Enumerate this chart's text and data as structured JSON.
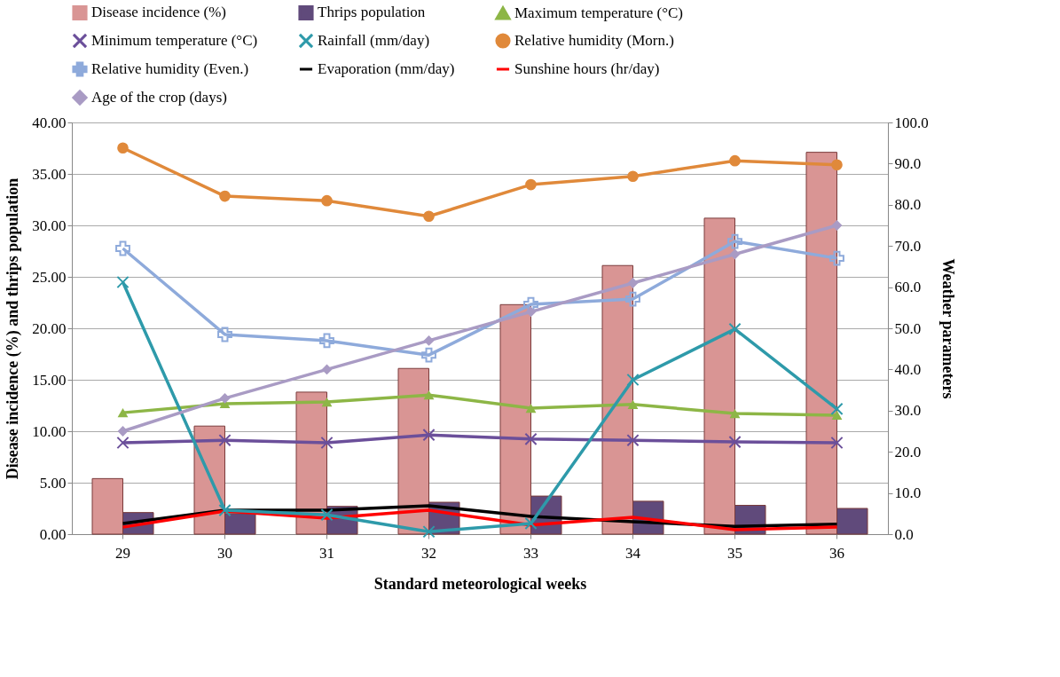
{
  "chart_data": {
    "type": "bar",
    "xlabel": "Standard meteorological weeks",
    "ylabel": "Disease incidence (%) and thrips population",
    "y2label": "Weather parameters",
    "categories": [
      "29",
      "30",
      "31",
      "32",
      "33",
      "34",
      "35",
      "36"
    ],
    "ylim": [
      0,
      40
    ],
    "yticks": [
      {
        "value": 0,
        "label": "0.00"
      },
      {
        "value": 5,
        "label": "5.00"
      },
      {
        "value": 10,
        "label": "10.00"
      },
      {
        "value": 15,
        "label": "15.00"
      },
      {
        "value": 20,
        "label": "20.00"
      },
      {
        "value": 25,
        "label": "25.00"
      },
      {
        "value": 30,
        "label": "30.00"
      },
      {
        "value": 35,
        "label": "35.00"
      },
      {
        "value": 40,
        "label": "40.00"
      }
    ],
    "y2lim": [
      0,
      100
    ],
    "y2ticks": [
      {
        "value": 0,
        "label": "0.0"
      },
      {
        "value": 10,
        "label": "10.0"
      },
      {
        "value": 20,
        "label": "20.0"
      },
      {
        "value": 30,
        "label": "30.0"
      },
      {
        "value": 40,
        "label": "40.0"
      },
      {
        "value": 50,
        "label": "50.0"
      },
      {
        "value": 60,
        "label": "60.0"
      },
      {
        "value": 70,
        "label": "70.0"
      },
      {
        "value": 80,
        "label": "80.0"
      },
      {
        "value": 90,
        "label": "90.0"
      },
      {
        "value": 100,
        "label": "100.0"
      }
    ],
    "grid": "y",
    "legend": "top",
    "line_style": "solid",
    "series": [
      {
        "name": "Disease incidence (%)",
        "color": "#d99594",
        "values": [
          5.4,
          10.5,
          13.8,
          16.1,
          22.3,
          26.1,
          30.7,
          37.1
        ]
      },
      {
        "name": "Thrips population",
        "color": "#604a7b",
        "values": [
          2.1,
          2.0,
          2.7,
          3.1,
          3.7,
          3.2,
          2.8,
          2.5
        ]
      },
      {
        "name": "Maximum temperature (°C)",
        "type": "line",
        "axis": "y2",
        "marker": "triangle",
        "color": "#8db646",
        "values": [
          29.5,
          31.7,
          32.1,
          33.8,
          30.6,
          31.5,
          29.3,
          28.9
        ]
      },
      {
        "name": "Minimum temperature (°C)",
        "type": "line",
        "axis": "y2",
        "marker": "cross",
        "color": "#6b4f9a",
        "values": [
          22.2,
          22.8,
          22.2,
          24.1,
          23.1,
          22.8,
          22.4,
          22.2
        ]
      },
      {
        "name": "Rainfall (mm/day)",
        "type": "line",
        "axis": "y2",
        "marker": "cross",
        "color": "#2e9aaa",
        "values": [
          61.2,
          5.8,
          4.7,
          0.6,
          2.6,
          37.5,
          49.8,
          30.4
        ]
      },
      {
        "name": "Relative humidity (Morn.)",
        "type": "line",
        "axis": "y2",
        "marker": "circle",
        "color": "#e0893a",
        "values": [
          93.8,
          82.1,
          81.0,
          77.2,
          84.9,
          86.9,
          90.7,
          89.7
        ]
      },
      {
        "name": "Relative humidity (Even.)",
        "type": "line",
        "axis": "y2",
        "marker": "plus",
        "color": "#8eaadb",
        "values": [
          69.4,
          48.5,
          47.0,
          43.5,
          55.8,
          57.1,
          71.1,
          67.0
        ]
      },
      {
        "name": "Evaporation (mm/day)",
        "type": "line",
        "axis": "y2",
        "marker": "none",
        "color": "#000000",
        "values": [
          2.6,
          5.8,
          5.8,
          6.9,
          4.3,
          3.0,
          1.9,
          2.4
        ]
      },
      {
        "name": "Sunshine hours (hr/day)",
        "type": "line",
        "axis": "y2",
        "marker": "none",
        "color": "#ff0000",
        "values": [
          1.7,
          5.6,
          3.9,
          5.8,
          2.2,
          4.1,
          1.1,
          1.7
        ]
      },
      {
        "name": "Age of the crop (days)",
        "type": "line",
        "axis": "y2",
        "marker": "diamond",
        "color": "#a99bc4",
        "values": [
          25,
          33,
          40,
          47,
          54,
          61,
          68,
          75
        ]
      }
    ]
  }
}
